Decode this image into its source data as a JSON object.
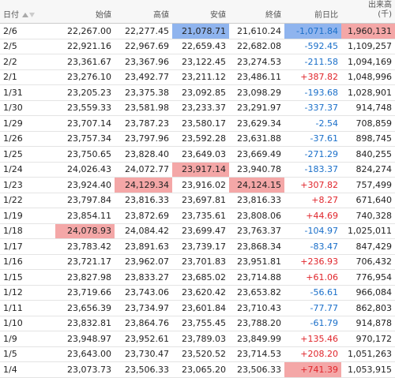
{
  "table": {
    "header": [
      "日付",
      "始値",
      "高値",
      "安値",
      "終値",
      "前日比",
      "出来高"
    ],
    "volume_unit": "(千)",
    "rows": [
      [
        "2/6",
        "22,267.00",
        "22,277.45",
        "21,078.71",
        "21,610.24",
        "-1,071.84",
        "1,960,131"
      ],
      [
        "2/5",
        "22,921.16",
        "22,967.69",
        "22,659.43",
        "22,682.08",
        "-592.45",
        "1,109,257"
      ],
      [
        "2/2",
        "23,361.67",
        "23,367.96",
        "23,122.45",
        "23,274.53",
        "-211.58",
        "1,094,169"
      ],
      [
        "2/1",
        "23,276.10",
        "23,492.77",
        "23,211.12",
        "23,486.11",
        "+387.82",
        "1,048,996"
      ],
      [
        "1/31",
        "23,205.23",
        "23,375.38",
        "23,092.85",
        "23,098.29",
        "-193.68",
        "1,028,901"
      ],
      [
        "1/30",
        "23,559.33",
        "23,581.98",
        "23,233.37",
        "23,291.97",
        "-337.37",
        "914,748"
      ],
      [
        "1/29",
        "23,707.14",
        "23,787.23",
        "23,580.17",
        "23,629.34",
        "-2.54",
        "708,859"
      ],
      [
        "1/26",
        "23,757.34",
        "23,797.96",
        "23,592.28",
        "23,631.88",
        "-37.61",
        "898,745"
      ],
      [
        "1/25",
        "23,750.65",
        "23,828.40",
        "23,649.03",
        "23,669.49",
        "-271.29",
        "840,255"
      ],
      [
        "1/24",
        "24,026.43",
        "24,072.77",
        "23,917.14",
        "23,940.78",
        "-183.37",
        "824,274"
      ],
      [
        "1/23",
        "23,924.40",
        "24,129.34",
        "23,916.02",
        "24,124.15",
        "+307.82",
        "757,499"
      ],
      [
        "1/22",
        "23,797.84",
        "23,816.33",
        "23,697.81",
        "23,816.33",
        "+8.27",
        "671,640"
      ],
      [
        "1/19",
        "23,854.11",
        "23,872.69",
        "23,735.61",
        "23,808.06",
        "+44.69",
        "740,328"
      ],
      [
        "1/18",
        "24,078.93",
        "24,084.42",
        "23,699.47",
        "23,763.37",
        "-104.97",
        "1,025,011"
      ],
      [
        "1/17",
        "23,783.42",
        "23,891.63",
        "23,739.17",
        "23,868.34",
        "-83.47",
        "847,429"
      ],
      [
        "1/16",
        "23,721.17",
        "23,962.07",
        "23,701.83",
        "23,951.81",
        "+236.93",
        "706,432"
      ],
      [
        "1/15",
        "23,827.98",
        "23,833.27",
        "23,685.02",
        "23,714.88",
        "+61.06",
        "776,954"
      ],
      [
        "1/12",
        "23,719.66",
        "23,743.06",
        "23,620.42",
        "23,653.82",
        "-56.61",
        "966,084"
      ],
      [
        "1/11",
        "23,656.39",
        "23,734.97",
        "23,601.84",
        "23,710.43",
        "-77.77",
        "862,803"
      ],
      [
        "1/10",
        "23,832.81",
        "23,864.76",
        "23,755.45",
        "23,788.20",
        "-61.79",
        "914,878"
      ],
      [
        "1/9",
        "23,948.97",
        "23,952.61",
        "23,789.03",
        "23,849.99",
        "+135.46",
        "970,172"
      ],
      [
        "1/5",
        "23,643.00",
        "23,730.47",
        "23,520.52",
        "23,714.53",
        "+208.20",
        "1,051,263"
      ],
      [
        "1/4",
        "23,073.73",
        "23,506.33",
        "23,065.20",
        "23,506.33",
        "+741.39",
        "1,053,915"
      ]
    ]
  }
}
